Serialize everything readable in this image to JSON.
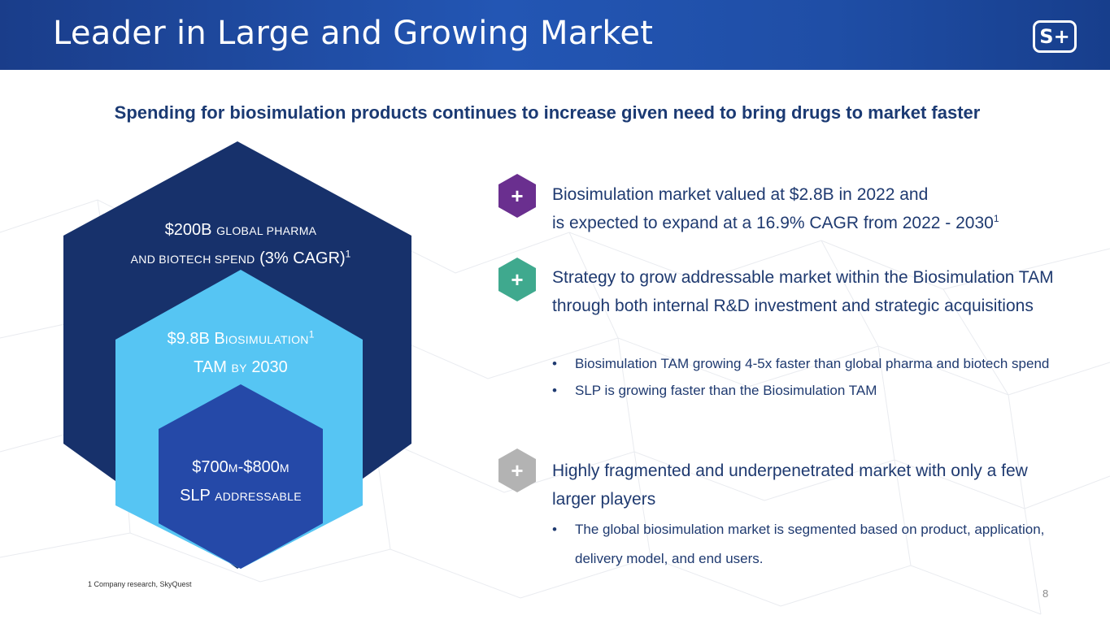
{
  "header": {
    "title": "Leader in Large and Growing Market",
    "logo_text": "S+"
  },
  "subtitle": "Spending for biosimulation products continues to increase given need to bring drugs to market faster",
  "hexagons": [
    {
      "line1_a": "$200B",
      "line1_b": "GLOBAL PHARMA",
      "line2_a": "AND BIOTECH SPEND",
      "line2_b": " (3% CAGR)",
      "sup": "1",
      "color": "#17316b"
    },
    {
      "line1_a": "$9.8B B",
      "line1_b": "IOSIMULATION",
      "sup": "1",
      "line2_a": "TAM",
      "line2_b": "BY",
      "line2_c": "2030",
      "color": "#56c5f3"
    },
    {
      "line1_a": "$700",
      "line1_b": "M",
      "line1_c": "-$800",
      "line1_d": "M",
      "line2_a": "SLP",
      "line2_b": "ADDRESSABLE",
      "color": "#2549a8"
    }
  ],
  "bullets": [
    {
      "icon": "plus-icon",
      "color": "#6a2f8f",
      "text_line1": "Biosimulation market valued at $2.8B in 2022 and",
      "text_line2": "is expected to expand at a 16.9% CAGR from 2022 - 2030",
      "sup": "1"
    },
    {
      "icon": "plus-icon",
      "color": "#3fa98e",
      "text": "Strategy to grow addressable market within the Biosimulation TAM through both internal R&D investment and strategic acquisitions",
      "sub": [
        "Biosimulation TAM growing 4-5x faster than global pharma and biotech spend",
        "SLP is growing faster than the Biosimulation TAM"
      ]
    },
    {
      "icon": "plus-icon",
      "color": "#b3b3b3",
      "text": "Highly fragmented and underpenetrated market with only a few larger players",
      "sub": [
        "The global biosimulation market is segmented based on product, application, delivery model, and end users."
      ]
    }
  ],
  "footnote": "1 Company research, SkyQuest",
  "page_number": "8"
}
